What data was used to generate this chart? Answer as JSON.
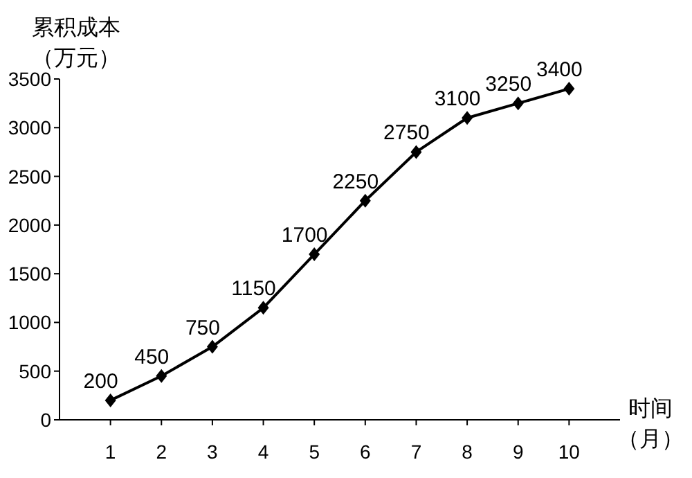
{
  "chart_data": {
    "type": "line",
    "xlabel": "时间（月）",
    "ylabel": "累积成本（万元）",
    "categories": [
      "1",
      "2",
      "3",
      "4",
      "5",
      "6",
      "7",
      "8",
      "9",
      "10"
    ],
    "series": [
      {
        "color": "#000000",
        "values": [
          200,
          450,
          750,
          1150,
          1700,
          2250,
          2750,
          3100,
          3250,
          3400
        ]
      }
    ],
    "ylim": [
      0,
      3500
    ],
    "yticks": [
      0,
      500,
      1000,
      1500,
      2000,
      2500,
      3000,
      3500
    ],
    "marker": "diamond",
    "line_style": "solid",
    "data_labels": true,
    "grid": false
  }
}
